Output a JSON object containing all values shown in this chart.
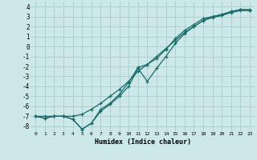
{
  "xlabel": "Humidex (Indice chaleur)",
  "bg_color": "#cde8e8",
  "grid_color": "#aacccc",
  "line_color": "#1a6b6b",
  "xlim": [
    -0.5,
    23.5
  ],
  "ylim": [
    -8.5,
    4.5
  ],
  "xticks": [
    0,
    1,
    2,
    3,
    4,
    5,
    6,
    7,
    8,
    9,
    10,
    11,
    12,
    13,
    14,
    15,
    16,
    17,
    18,
    19,
    20,
    21,
    22,
    23
  ],
  "yticks": [
    -8,
    -7,
    -6,
    -5,
    -4,
    -3,
    -2,
    -1,
    0,
    1,
    2,
    3,
    4
  ],
  "line1_x": [
    0,
    1,
    2,
    3,
    4,
    5,
    6,
    7,
    8,
    9,
    10,
    11,
    12,
    13,
    14,
    15,
    16,
    17,
    18,
    19,
    20,
    21,
    22,
    23
  ],
  "line1_y": [
    -7.0,
    -7.0,
    -7.0,
    -7.0,
    -7.0,
    -6.8,
    -6.3,
    -5.7,
    -5.0,
    -4.3,
    -3.5,
    -2.5,
    -1.8,
    -1.0,
    -0.2,
    0.6,
    1.4,
    2.0,
    2.6,
    3.0,
    3.2,
    3.5,
    3.7,
    3.7
  ],
  "line2_x": [
    0,
    1,
    2,
    3,
    4,
    5,
    6,
    7,
    8,
    9,
    10,
    11,
    12,
    13,
    14,
    15,
    16,
    17,
    18,
    19,
    20,
    21,
    22,
    23
  ],
  "line2_y": [
    -7.0,
    -7.2,
    -7.0,
    -7.0,
    -7.3,
    -8.3,
    -7.7,
    -6.5,
    -5.8,
    -5.0,
    -4.0,
    -2.2,
    -3.5,
    -2.2,
    -1.0,
    0.3,
    1.3,
    2.0,
    2.6,
    2.9,
    3.1,
    3.4,
    3.6,
    3.6
  ],
  "line3_x": [
    0,
    1,
    2,
    3,
    4,
    5,
    6,
    7,
    8,
    9,
    10,
    11,
    12,
    13,
    14,
    15,
    16,
    17,
    18,
    19,
    20,
    21,
    22,
    23
  ],
  "line3_y": [
    -7.0,
    -7.2,
    -7.0,
    -7.0,
    -7.3,
    -8.3,
    -7.7,
    -6.3,
    -5.7,
    -4.8,
    -3.6,
    -2.1,
    -1.8,
    -1.2,
    -0.3,
    0.8,
    1.6,
    2.2,
    2.8,
    3.0,
    3.2,
    3.5,
    3.7,
    3.6
  ]
}
